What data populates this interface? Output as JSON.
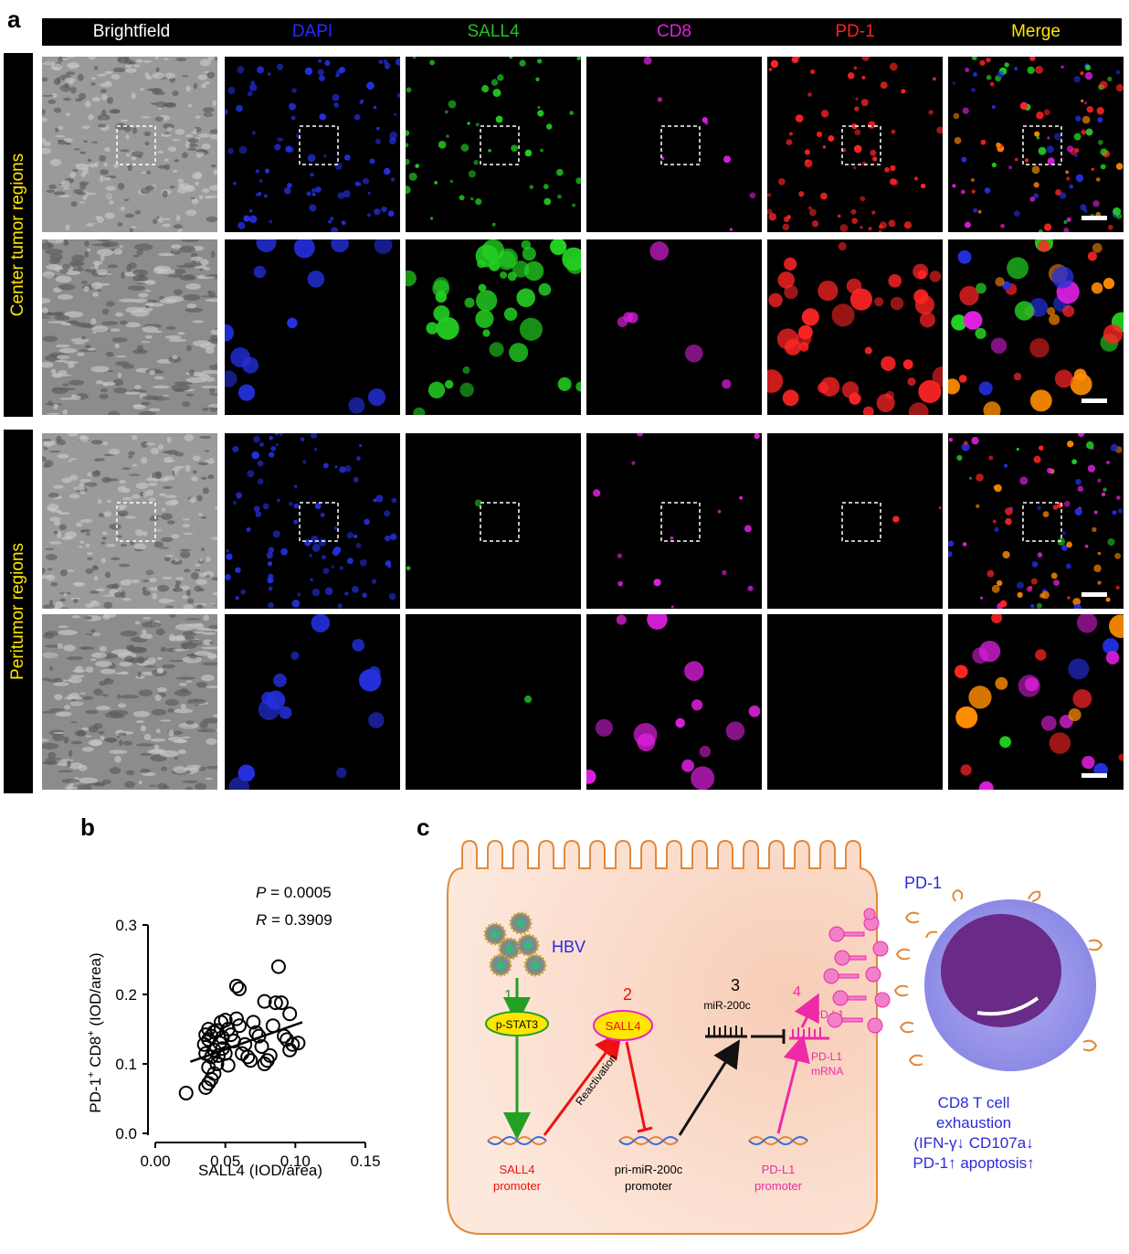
{
  "panels": {
    "a": "a",
    "b": "b",
    "c": "c"
  },
  "columns": [
    "Brightfield",
    "DAPI",
    "SALL4",
    "CD8",
    "PD-1",
    "Merge"
  ],
  "column_colors": [
    "#ffffff",
    "#2a2aff",
    "#22c422",
    "#e020e0",
    "#ff2020",
    "#ffe600"
  ],
  "rows": [
    "Center tumor regions",
    "Peritumor regions"
  ],
  "chart_data": {
    "type": "scatter",
    "xlabel": "SALL4 (IOD/area)",
    "ylabel_parts": {
      "pre": "PD-1",
      "sup1": "+",
      "mid": " CD8",
      "sup2": "+",
      "post": " (IOD/area)"
    },
    "xlim": [
      0.0,
      0.15
    ],
    "ylim": [
      0.0,
      0.3
    ],
    "xticks": [
      "0.00",
      "0.05",
      "0.10",
      "0.15"
    ],
    "yticks": [
      "0.0",
      "0.1",
      "0.2",
      "0.3"
    ],
    "stats": {
      "p_label": "P",
      "p_value": " = 0.0005",
      "r_label": "R",
      "r_value": " = 0.3909"
    },
    "fit_line": [
      [
        0.025,
        0.103
      ],
      [
        0.105,
        0.16
      ]
    ],
    "points": [
      [
        0.022,
        0.058
      ],
      [
        0.036,
        0.066
      ],
      [
        0.038,
        0.072
      ],
      [
        0.04,
        0.078
      ],
      [
        0.042,
        0.086
      ],
      [
        0.038,
        0.095
      ],
      [
        0.044,
        0.1
      ],
      [
        0.04,
        0.11
      ],
      [
        0.036,
        0.115
      ],
      [
        0.042,
        0.12
      ],
      [
        0.035,
        0.128
      ],
      [
        0.038,
        0.135
      ],
      [
        0.04,
        0.14
      ],
      [
        0.036,
        0.142
      ],
      [
        0.042,
        0.146
      ],
      [
        0.038,
        0.15
      ],
      [
        0.044,
        0.148
      ],
      [
        0.046,
        0.13
      ],
      [
        0.048,
        0.122
      ],
      [
        0.045,
        0.112
      ],
      [
        0.05,
        0.115
      ],
      [
        0.047,
        0.16
      ],
      [
        0.05,
        0.163
      ],
      [
        0.052,
        0.15
      ],
      [
        0.054,
        0.142
      ],
      [
        0.056,
        0.133
      ],
      [
        0.058,
        0.165
      ],
      [
        0.06,
        0.155
      ],
      [
        0.058,
        0.212
      ],
      [
        0.06,
        0.208
      ],
      [
        0.062,
        0.115
      ],
      [
        0.066,
        0.11
      ],
      [
        0.068,
        0.105
      ],
      [
        0.072,
        0.145
      ],
      [
        0.074,
        0.14
      ],
      [
        0.076,
        0.125
      ],
      [
        0.078,
        0.1
      ],
      [
        0.08,
        0.105
      ],
      [
        0.082,
        0.112
      ],
      [
        0.078,
        0.19
      ],
      [
        0.084,
        0.155
      ],
      [
        0.086,
        0.188
      ],
      [
        0.088,
        0.24
      ],
      [
        0.09,
        0.188
      ],
      [
        0.092,
        0.14
      ],
      [
        0.094,
        0.135
      ],
      [
        0.096,
        0.172
      ],
      [
        0.098,
        0.128
      ],
      [
        0.096,
        0.12
      ],
      [
        0.102,
        0.13
      ],
      [
        0.07,
        0.16
      ],
      [
        0.064,
        0.128
      ],
      [
        0.052,
        0.098
      ],
      [
        0.048,
        0.138
      ]
    ]
  },
  "diagram": {
    "hbv": "HBV",
    "step1": "1",
    "pstat3": "p-STAT3",
    "step2": "2",
    "sall4": "SALL4",
    "reactivation": "Reactivation",
    "step3": "3",
    "mir200c": "miR-200c",
    "step4": "4",
    "pdl1": "PD-L1",
    "pdl1_mrna_1": "PD-L1",
    "pdl1_mrna_2": "mRNA",
    "sall4_promoter_1": "SALL4",
    "sall4_promoter_2": "promoter",
    "primir_promoter_1": "pri-miR-200c",
    "primir_promoter_2": "promoter",
    "pdl1_promoter_1": "PD-L1",
    "pdl1_promoter_2": "promoter",
    "pd1": "PD-1",
    "outcome": [
      "CD8 T cell",
      "exhaustion",
      "(IFN-γ↓ CD107a↓",
      "PD-1↑ apoptosis↑"
    ]
  }
}
